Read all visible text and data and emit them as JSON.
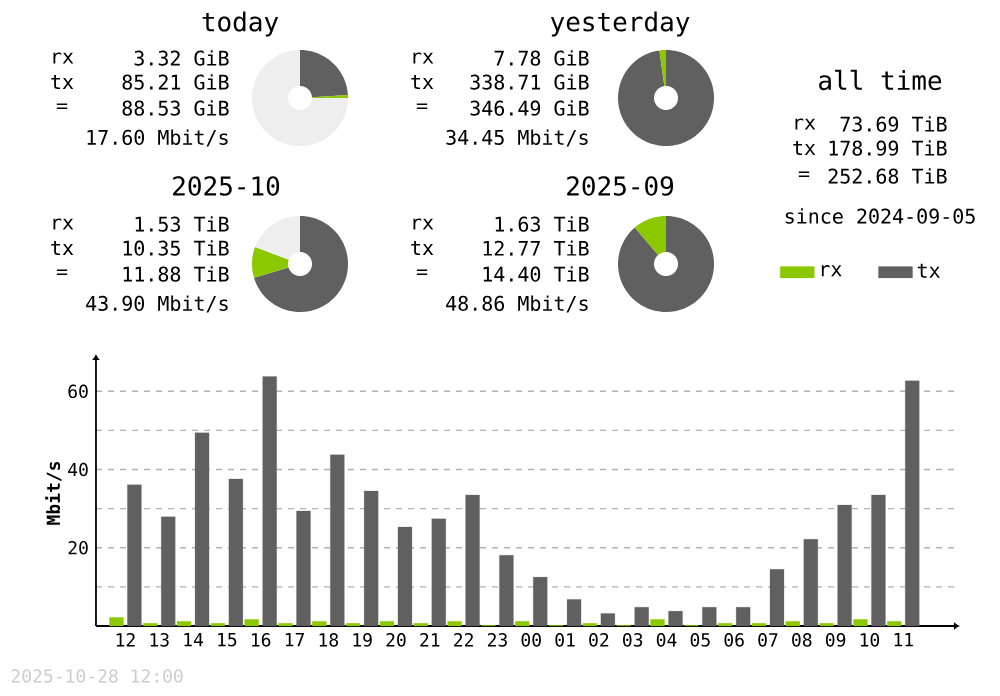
{
  "chart_data": [
    {
      "type": "donut",
      "title": "today",
      "categories": [
        null,
        null,
        null
      ],
      "values": [
        24,
        1,
        75
      ],
      "colors": [
        "#606060",
        "#8cc800",
        "#eeeeee"
      ],
      "annotations": [
        "rx",
        "3.32 GiB",
        "tx",
        "85.21 GiB",
        "=",
        "88.53 GiB",
        "17.60 Mbit/s"
      ]
    },
    {
      "type": "donut",
      "title": "yesterday",
      "categories": [
        null,
        null
      ],
      "values": [
        97.8,
        2.2
      ],
      "colors": [
        "#606060",
        "#8cc800"
      ],
      "annotations": [
        "rx",
        "7.78 GiB",
        "tx",
        "338.71 GiB",
        "=",
        "346.49 GiB",
        "34.45 Mbit/s"
      ]
    },
    {
      "type": "donut",
      "title": "2025-10",
      "categories": [
        null,
        null,
        null
      ],
      "values": [
        70.4,
        10.4,
        19.2
      ],
      "colors": [
        "#606060",
        "#8cc800",
        "#eeeeee"
      ],
      "annotations": [
        "rx",
        "1.53 TiB",
        "tx",
        "10.35 TiB",
        "=",
        "11.88 TiB",
        "43.90 Mbit/s"
      ]
    },
    {
      "type": "donut",
      "title": "2025-09",
      "categories": [
        null,
        null
      ],
      "values": [
        88.7,
        11.3
      ],
      "colors": [
        "#606060",
        "#8cc800"
      ],
      "annotations": [
        "rx",
        "1.63 TiB",
        "tx",
        "12.77 TiB",
        "=",
        "14.40 TiB",
        "48.86 Mbit/s"
      ]
    },
    {
      "type": "other",
      "title": "all time",
      "annotations": [
        "rx",
        "73.69 TiB",
        "tx",
        "178.99 TiB",
        "=",
        "252.68 TiB",
        "since 2024-09-05"
      ]
    },
    {
      "type": "bar",
      "categories": [
        "12",
        "13",
        "14",
        "15",
        "16",
        "17",
        "18",
        "19",
        "20",
        "21",
        "22",
        "23",
        "00",
        "01",
        "02",
        "03",
        "04",
        "05",
        "06",
        "07",
        "08",
        "09",
        "10",
        "11"
      ],
      "series": [
        {
          "name": "rx",
          "color": "#8cc800",
          "values": [
            2.2,
            0.7,
            1.2,
            0.7,
            1.7,
            0.7,
            1.2,
            0.7,
            1.2,
            0.7,
            1.2,
            0.2,
            1.2,
            0.2,
            0.7,
            0.2,
            1.7,
            0.2,
            0.7,
            0.7,
            1.2,
            0.7,
            1.7,
            1.2
          ]
        },
        {
          "name": "tx",
          "color": "#606060",
          "values": [
            36.1,
            27.9,
            49.4,
            37.6,
            63.8,
            29.4,
            43.8,
            34.5,
            25.3,
            27.4,
            33.5,
            18.1,
            12.5,
            6.8,
            3.2,
            4.8,
            3.8,
            4.8,
            4.8,
            14.5,
            22.2,
            30.9,
            33.5,
            62.7
          ]
        }
      ],
      "ylabel": "Mbit/s",
      "ylim": [
        0,
        68
      ],
      "yticks": [
        {
          "value": 10,
          "label": null
        },
        20,
        {
          "value": 30,
          "label": null
        },
        40,
        {
          "value": 50,
          "label": null
        },
        60
      ],
      "grid": "y",
      "legend": "top right",
      "annotations": [
        "2025-10-28 12:00"
      ]
    }
  ]
}
